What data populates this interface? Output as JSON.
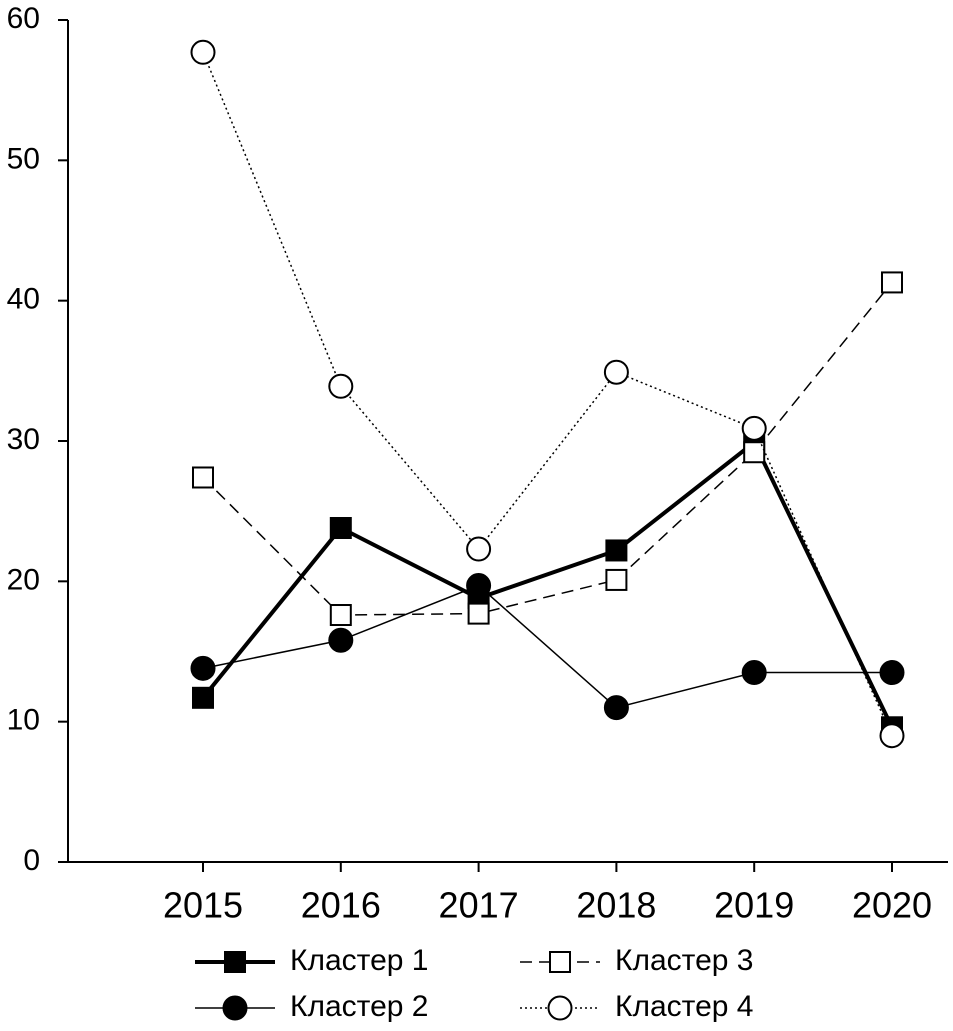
{
  "chart_data": {
    "type": "line",
    "x": [
      "2015",
      "2016",
      "2017",
      "2018",
      "2019",
      "2020"
    ],
    "ylim": [
      0,
      60
    ],
    "yticks": [
      0,
      10,
      20,
      30,
      40,
      50,
      60
    ],
    "series": [
      {
        "name": "Кластер 1",
        "color": "#000000",
        "marker": "square",
        "marker_fill": "#000000",
        "line_style": "solid",
        "line_width": 4,
        "values": [
          11.7,
          23.8,
          18.8,
          22.2,
          29.9,
          9.6
        ]
      },
      {
        "name": "Кластер 2",
        "color": "#000000",
        "marker": "circle",
        "marker_fill": "#000000",
        "line_style": "solid",
        "line_width": 1.5,
        "values": [
          13.8,
          15.8,
          19.7,
          11.0,
          13.5,
          13.5
        ]
      },
      {
        "name": "Кластер 3",
        "color": "#000000",
        "marker": "square",
        "marker_fill": "#ffffff",
        "line_style": "dashed",
        "line_width": 1.5,
        "values": [
          27.4,
          17.6,
          17.7,
          20.1,
          29.2,
          41.3
        ]
      },
      {
        "name": "Кластер 4",
        "color": "#000000",
        "marker": "circle",
        "marker_fill": "#ffffff",
        "line_style": "dotted",
        "line_width": 1.5,
        "values": [
          57.7,
          33.9,
          22.3,
          34.9,
          30.9,
          9.0
        ]
      }
    ],
    "legend": "bottom"
  }
}
